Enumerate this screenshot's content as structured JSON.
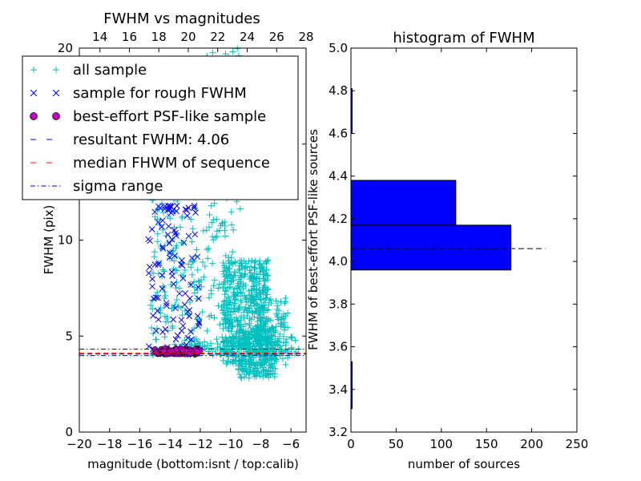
{
  "chart_data": [
    {
      "type": "scatter",
      "title": "FWHM vs magnitudes",
      "xlabel": "magnitude (bottom:isnt / top:calib)",
      "ylabel": "FWHM (pix)",
      "xlim": [
        -20,
        -5
      ],
      "ylim": [
        0,
        20
      ],
      "x_ticks": [
        -20,
        -18,
        -16,
        -14,
        -12,
        -10,
        -8,
        -6
      ],
      "x_tick_labels": [
        "−20",
        "−18",
        "−16",
        "−14",
        "−12",
        "−10",
        "−8",
        "−6"
      ],
      "y_ticks": [
        0,
        5,
        10,
        15,
        20
      ],
      "y_tick_labels": [
        "0",
        "5",
        "10",
        "15",
        "20"
      ],
      "top_xlim": [
        12.6,
        28
      ],
      "top_x_ticks": [
        14,
        16,
        18,
        20,
        22,
        24,
        26,
        28
      ],
      "top_x_tick_labels": [
        "14",
        "16",
        "18",
        "20",
        "22",
        "24",
        "26",
        "28"
      ],
      "grid": false,
      "legend_placement": "upper-left",
      "lines": {
        "resultant_fwhm": 4.06,
        "median_fwhm": 4.12,
        "sigma_range": [
          3.98,
          4.32
        ]
      },
      "series": [
        {
          "name": "all sample",
          "marker": "+",
          "color": "#00bfbf",
          "clusters": [
            {
              "x": [
                -15.3,
                -13.0
              ],
              "y": [
                4.0,
                14.5
              ],
              "n": 130
            },
            {
              "x": [
                -12.8,
                -9.3
              ],
              "y": [
                4.0,
                20.0
              ],
              "n": 260
            },
            {
              "x": [
                -10.5,
                -7.5
              ],
              "y": [
                3.5,
                9.0
              ],
              "n": 480
            },
            {
              "x": [
                -9.5,
                -7.0
              ],
              "y": [
                2.8,
                5.5
              ],
              "n": 260
            },
            {
              "x": [
                -8.3,
                -6.2
              ],
              "y": [
                3.5,
                7.0
              ],
              "n": 110
            },
            {
              "x": [
                -13.0,
                -5.5
              ],
              "y": [
                4.0,
                5.0
              ],
              "n": 120
            }
          ]
        },
        {
          "name": "sample for rough FWHM",
          "marker": "x",
          "color": "#0000ff",
          "clusters": [
            {
              "x": [
                -15.5,
                -12.0
              ],
              "y": [
                4.0,
                11.5
              ],
              "n": 90
            },
            {
              "x": [
                -14.8,
                -12.3
              ],
              "y": [
                11.5,
                11.8
              ],
              "n": 18
            }
          ]
        },
        {
          "name": "best-effort PSF-like sample",
          "marker": "o",
          "color": "#bf00bf",
          "clusters": [
            {
              "x": [
                -15.0,
                -12.0
              ],
              "y": [
                4.05,
                4.35
              ],
              "n": 95
            }
          ]
        }
      ],
      "legend": [
        {
          "label": "all sample",
          "style": "plus",
          "color": "#00bfbf"
        },
        {
          "label": "sample for rough FWHM",
          "style": "cross",
          "color": "#0000ff"
        },
        {
          "label": "best-effort PSF-like sample",
          "style": "circle",
          "color": "#bf00bf"
        },
        {
          "label": "resultant FWHM: 4.06",
          "style": "dashed",
          "color": "#0000ff"
        },
        {
          "label": "median FHWM of sequence",
          "style": "dashed",
          "color": "#ff0000"
        },
        {
          "label": "sigma range",
          "style": "dashdot",
          "color": "#0000ff"
        }
      ]
    },
    {
      "type": "bar",
      "orientation": "horizontal",
      "title": "histogram of FWHM",
      "xlabel": "number of sources",
      "ylabel": "FWHM of best-effort PSF-like sources",
      "xlim": [
        0,
        250
      ],
      "ylim": [
        3.2,
        5.0
      ],
      "x_ticks": [
        0,
        50,
        100,
        150,
        200,
        250
      ],
      "x_tick_labels": [
        "0",
        "50",
        "100",
        "150",
        "200",
        "250"
      ],
      "y_ticks": [
        3.2,
        3.4,
        3.6,
        3.8,
        4.0,
        4.2,
        4.4,
        4.6,
        4.8,
        5.0
      ],
      "y_tick_labels": [
        "3.2",
        "3.4",
        "3.6",
        "3.8",
        "4.0",
        "4.2",
        "4.4",
        "4.6",
        "4.8",
        "5.0"
      ],
      "color": "#0000ff",
      "bins": [
        {
          "y0": 3.31,
          "y1": 3.53,
          "count": 1
        },
        {
          "y0": 3.53,
          "y1": 3.74,
          "count": 0
        },
        {
          "y0": 3.74,
          "y1": 3.96,
          "count": 0
        },
        {
          "y0": 3.96,
          "y1": 4.17,
          "count": 177
        },
        {
          "y0": 4.17,
          "y1": 4.38,
          "count": 116
        },
        {
          "y0": 4.38,
          "y1": 4.6,
          "count": 0
        },
        {
          "y0": 4.6,
          "y1": 4.81,
          "count": 1
        }
      ],
      "reference_line": {
        "y": 4.06,
        "x_range": [
          0,
          215
        ],
        "style": "dashed",
        "color": "#000000"
      }
    }
  ]
}
